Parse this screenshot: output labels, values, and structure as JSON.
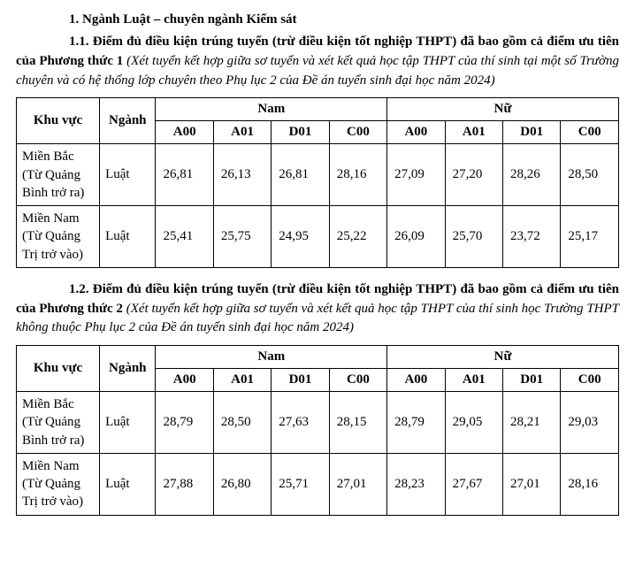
{
  "heading_main": "1. Ngành Luật – chuyên ngành Kiểm sát",
  "section1": {
    "lead": "1.1. Điểm đủ điều kiện trúng tuyển (trừ điều kiện tốt nghiệp THPT) đã bao gồm cả điểm ưu tiên của Phương thức 1",
    "ital": " (Xét tuyển kết hợp giữa sơ tuyển và xét kết quả học tập THPT của thí sinh tại một số Trường chuyên và có hệ thống lớp chuyên theo Phụ lục 2 của Đề án tuyển sinh đại học năm 2024)",
    "table": {
      "h_khuvuc": "Khu vực",
      "h_nganh": "Ngành",
      "h_nam": "Nam",
      "h_nu": "Nữ",
      "sub": [
        "A00",
        "A01",
        "D01",
        "C00",
        "A00",
        "A01",
        "D01",
        "C00"
      ],
      "rows": [
        {
          "region": "Miền Bắc (Từ Quảng Bình trở ra)",
          "nganh": "Luật",
          "vals": [
            "26,81",
            "26,13",
            "26,81",
            "28,16",
            "27,09",
            "27,20",
            "28,26",
            "28,50"
          ]
        },
        {
          "region": "Miền Nam (Từ Quảng Trị trở vào)",
          "nganh": "Luật",
          "vals": [
            "25,41",
            "25,75",
            "24,95",
            "25,22",
            "26,09",
            "25,70",
            "23,72",
            "25,17"
          ]
        }
      ]
    }
  },
  "section2": {
    "lead": "1.2. Điểm đủ điều kiện trúng tuyển (trừ điều kiện tốt nghiệp THPT) đã bao gồm cả điểm ưu tiên của Phương thức 2",
    "ital": " (Xét tuyển kết hợp giữa sơ tuyển và xét kết quả học tập THPT của thí sinh học Trường THPT không thuộc Phụ lục 2 của Đề án tuyển sinh đại học năm 2024)",
    "table": {
      "h_khuvuc": "Khu vực",
      "h_nganh": "Ngành",
      "h_nam": "Nam",
      "h_nu": "Nữ",
      "sub": [
        "A00",
        "A01",
        "D01",
        "C00",
        "A00",
        "A01",
        "D01",
        "C00"
      ],
      "rows": [
        {
          "region": "Miền Bắc (Từ Quảng Bình trở ra)",
          "nganh": "Luật",
          "vals": [
            "28,79",
            "28,50",
            "27,63",
            "28,15",
            "28,79",
            "29,05",
            "28,21",
            "29,03"
          ]
        },
        {
          "region": "Miền Nam (Từ Quảng Trị trở vào)",
          "nganh": "Luật",
          "vals": [
            "27,88",
            "26,80",
            "25,71",
            "27,01",
            "28,23",
            "27,67",
            "27,01",
            "28,16"
          ]
        }
      ]
    }
  }
}
